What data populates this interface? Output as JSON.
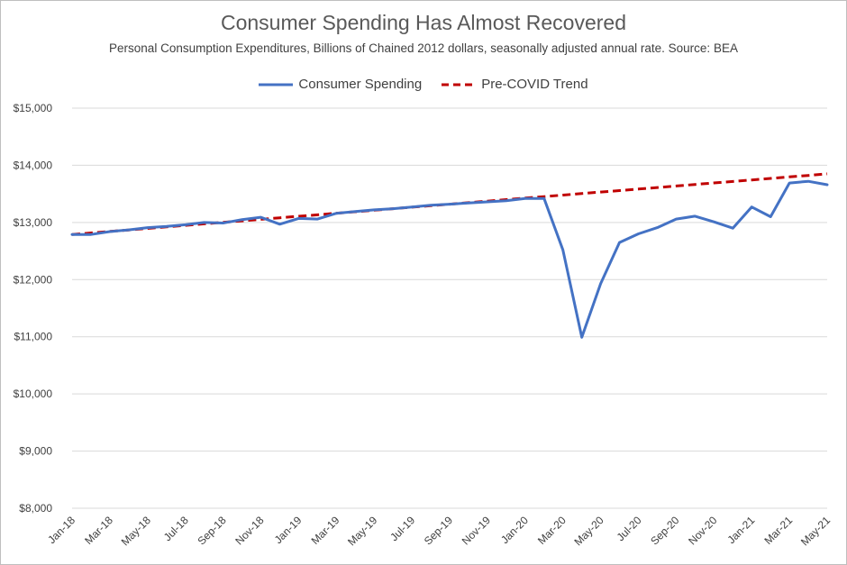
{
  "chart_data": {
    "type": "line",
    "title": "Consumer Spending Has Almost Recovered",
    "subtitle": "Personal Consumption Expenditures, Billions of Chained 2012 dollars,  seasonally adjusted annual rate. Source: BEA",
    "xlabel": "",
    "ylabel": "",
    "ylim": [
      8000,
      15000
    ],
    "ytick_values": [
      8000,
      9000,
      10000,
      11000,
      12000,
      13000,
      14000,
      15000
    ],
    "ytick_labels": [
      "$8,000",
      "$9,000",
      "$10,000",
      "$11,000",
      "$12,000",
      "$13,000",
      "$14,000",
      "$15,000"
    ],
    "grid": true,
    "legend_position": "top-center",
    "x": [
      "Jan-18",
      "Feb-18",
      "Mar-18",
      "Apr-18",
      "May-18",
      "Jun-18",
      "Jul-18",
      "Aug-18",
      "Sep-18",
      "Oct-18",
      "Nov-18",
      "Dec-18",
      "Jan-19",
      "Feb-19",
      "Mar-19",
      "Apr-19",
      "May-19",
      "Jun-19",
      "Jul-19",
      "Aug-19",
      "Sep-19",
      "Oct-19",
      "Nov-19",
      "Dec-19",
      "Jan-20",
      "Feb-20",
      "Mar-20",
      "Apr-20",
      "May-20",
      "Jun-20",
      "Jul-20",
      "Aug-20",
      "Sep-20",
      "Oct-20",
      "Nov-20",
      "Dec-20",
      "Jan-21",
      "Feb-21",
      "Mar-21",
      "Apr-21",
      "May-21"
    ],
    "xtick_labels": [
      "Jan-18",
      "Mar-18",
      "May-18",
      "Jul-18",
      "Sep-18",
      "Nov-18",
      "Jan-19",
      "Mar-19",
      "May-19",
      "Jul-19",
      "Sep-19",
      "Nov-19",
      "Jan-20",
      "Mar-20",
      "May-20",
      "Jul-20",
      "Sep-20",
      "Nov-20",
      "Jan-21",
      "Mar-21",
      "May-21"
    ],
    "series": [
      {
        "name": "Consumer Spending",
        "color": "#4472c4",
        "style": "solid",
        "values": [
          12790,
          12790,
          12840,
          12870,
          12910,
          12930,
          12960,
          13000,
          12990,
          13050,
          13090,
          12970,
          13070,
          13060,
          13160,
          13190,
          13220,
          13240,
          13270,
          13300,
          13320,
          13340,
          13360,
          13380,
          13420,
          13420,
          12520,
          10990,
          11930,
          12650,
          12800,
          12910,
          13060,
          13110,
          13010,
          12900,
          13270,
          13100,
          13690,
          13720,
          13660
        ]
      },
      {
        "name": "Pre-COVID Trend",
        "color": "#c00000",
        "style": "dashed",
        "values": [
          12790,
          12816,
          12843,
          12869,
          12896,
          12922,
          12949,
          12975,
          13002,
          13028,
          13055,
          13081,
          13108,
          13134,
          13161,
          13187,
          13214,
          13240,
          13267,
          13293,
          13320,
          13346,
          13373,
          13399,
          13426,
          13452,
          13479,
          13505,
          13532,
          13558,
          13585,
          13611,
          13638,
          13664,
          13691,
          13717,
          13744,
          13770,
          13797,
          13823,
          13850
        ]
      }
    ]
  }
}
